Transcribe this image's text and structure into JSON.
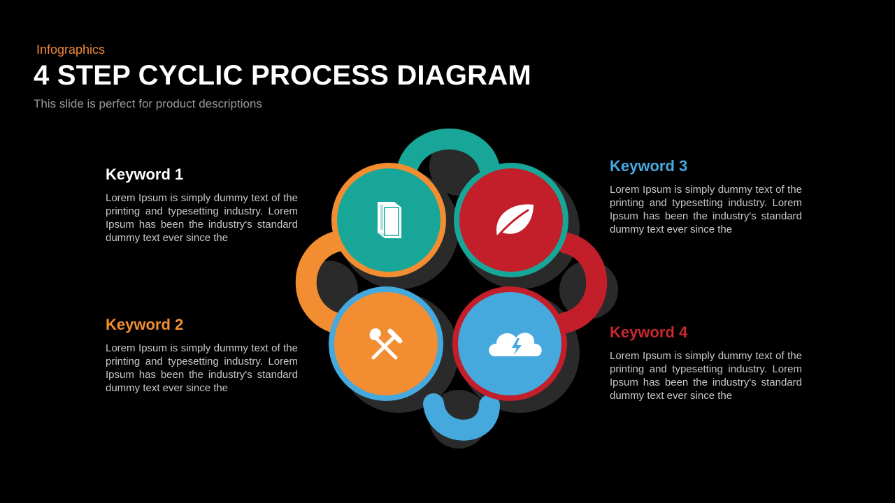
{
  "header": {
    "kicker": "Infographics",
    "title": "4 STEP CYCLIC PROCESS DIAGRAM",
    "subtitle": "This slide is perfect for product descriptions"
  },
  "steps": [
    {
      "keyword": "Keyword 1",
      "text": "Lorem Ipsum is simply dummy text of the printing and typesetting industry. Lorem Ipsum has been the industry's standard dummy text ever since the",
      "color": "#ffffff",
      "circle_color": "#17a698",
      "ring_color": "#f28e31",
      "icon": "book-icon"
    },
    {
      "keyword": "Keyword 2",
      "text": "Lorem Ipsum is simply dummy text of the printing and typesetting industry. Lorem Ipsum has been the industry's standard dummy text ever since the",
      "color": "#f28e31",
      "circle_color": "#f28e31",
      "ring_color": "#45a9de",
      "icon": "tools-icon"
    },
    {
      "keyword": "Keyword 3",
      "text": "Lorem Ipsum is simply dummy text of the printing and typesetting industry. Lorem Ipsum has been the industry's standard dummy text ever since the",
      "color": "#45a9de",
      "circle_color": "#c21f2a",
      "ring_color": "#17a698",
      "icon": "leaf-icon"
    },
    {
      "keyword": "Keyword 4",
      "text": "Lorem Ipsum is simply dummy text of the printing and typesetting industry. Lorem Ipsum has been the industry's standard dummy text ever since the",
      "color": "#c9282f",
      "circle_color": "#45a9de",
      "ring_color": "#c21f2a",
      "icon": "cloud-lightning-icon"
    }
  ]
}
